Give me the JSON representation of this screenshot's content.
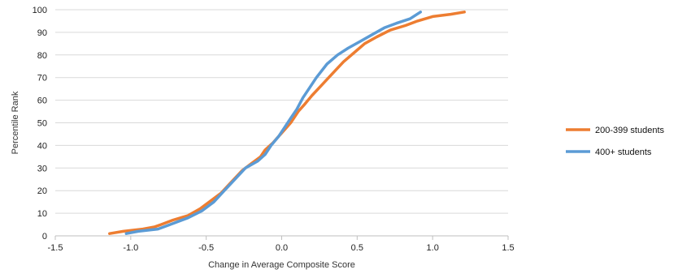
{
  "chart_data": {
    "type": "line",
    "title": "",
    "xlabel": "Change in Average Composite Score",
    "ylabel": "Percentile Rank",
    "xlim": [
      -1.5,
      1.5
    ],
    "ylim": [
      0,
      100
    ],
    "x_ticks": [
      "-1.5",
      "-1.0",
      "-0.5",
      "0.0",
      "0.5",
      "1.0",
      "1.5"
    ],
    "y_ticks": [
      "0",
      "10",
      "20",
      "30",
      "40",
      "50",
      "60",
      "70",
      "80",
      "90",
      "100"
    ],
    "grid": "horizontal",
    "legend_position": "right",
    "series": [
      {
        "name": "200-399 students",
        "color": "#ED7D31",
        "points": [
          [
            -1.14,
            1
          ],
          [
            -1.05,
            2
          ],
          [
            -0.92,
            3
          ],
          [
            -0.84,
            4
          ],
          [
            -0.8,
            5
          ],
          [
            -0.72,
            7
          ],
          [
            -0.62,
            9
          ],
          [
            -0.54,
            12
          ],
          [
            -0.48,
            15
          ],
          [
            -0.4,
            19
          ],
          [
            -0.33,
            24
          ],
          [
            -0.26,
            29
          ],
          [
            -0.2,
            32
          ],
          [
            -0.14,
            35
          ],
          [
            -0.11,
            38
          ],
          [
            -0.06,
            41
          ],
          [
            -0.02,
            44
          ],
          [
            0.02,
            47
          ],
          [
            0.06,
            50
          ],
          [
            0.11,
            55
          ],
          [
            0.15,
            58
          ],
          [
            0.2,
            62
          ],
          [
            0.27,
            67
          ],
          [
            0.34,
            72
          ],
          [
            0.41,
            77
          ],
          [
            0.48,
            81
          ],
          [
            0.55,
            85
          ],
          [
            0.63,
            88
          ],
          [
            0.72,
            91
          ],
          [
            0.82,
            93
          ],
          [
            0.9,
            95
          ],
          [
            1.0,
            97
          ],
          [
            1.12,
            98
          ],
          [
            1.21,
            99
          ]
        ]
      },
      {
        "name": "400+ students",
        "color": "#5B9BD5",
        "points": [
          [
            -1.03,
            1
          ],
          [
            -0.95,
            2
          ],
          [
            -0.82,
            3
          ],
          [
            -0.74,
            5
          ],
          [
            -0.62,
            8
          ],
          [
            -0.53,
            11
          ],
          [
            -0.45,
            15
          ],
          [
            -0.38,
            20
          ],
          [
            -0.31,
            25
          ],
          [
            -0.24,
            30
          ],
          [
            -0.16,
            33
          ],
          [
            -0.11,
            36
          ],
          [
            -0.07,
            40
          ],
          [
            -0.02,
            44
          ],
          [
            0.02,
            48
          ],
          [
            0.06,
            52
          ],
          [
            0.1,
            56
          ],
          [
            0.14,
            61
          ],
          [
            0.18,
            65
          ],
          [
            0.23,
            70
          ],
          [
            0.3,
            76
          ],
          [
            0.37,
            80
          ],
          [
            0.44,
            83
          ],
          [
            0.52,
            86
          ],
          [
            0.6,
            89
          ],
          [
            0.68,
            92
          ],
          [
            0.76,
            94
          ],
          [
            0.85,
            96
          ],
          [
            0.92,
            99
          ]
        ]
      }
    ]
  }
}
